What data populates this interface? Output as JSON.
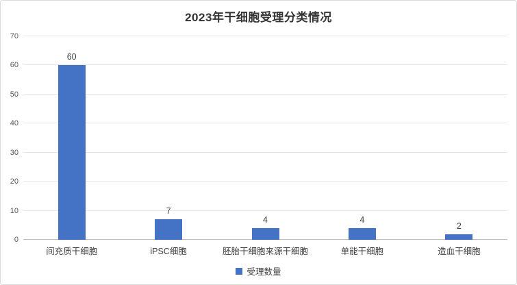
{
  "chart_data": {
    "type": "bar",
    "title": "2023年干细胞受理分类情况",
    "categories": [
      "间充质干细胞",
      "iPSC细胞",
      "胚胎干细胞来源干细胞",
      "单能干细胞",
      "造血干细胞"
    ],
    "values": [
      60,
      7,
      4,
      4,
      2
    ],
    "series_name": "受理数量",
    "xlabel": "",
    "ylabel": "",
    "ylim": [
      0,
      70
    ],
    "yticks": [
      0,
      10,
      20,
      30,
      40,
      50,
      60,
      70
    ],
    "grid": "horizontal",
    "legend_position": "bottom",
    "data_labels_shown": true
  },
  "colors": {
    "bar": "#4472c4",
    "gridline": "#e6e6e6",
    "axis_line": "#bfbfbf",
    "label_text": "#404040",
    "tick_text": "#595959",
    "title_text": "#333333",
    "card_border": "#d9d9d9"
  }
}
